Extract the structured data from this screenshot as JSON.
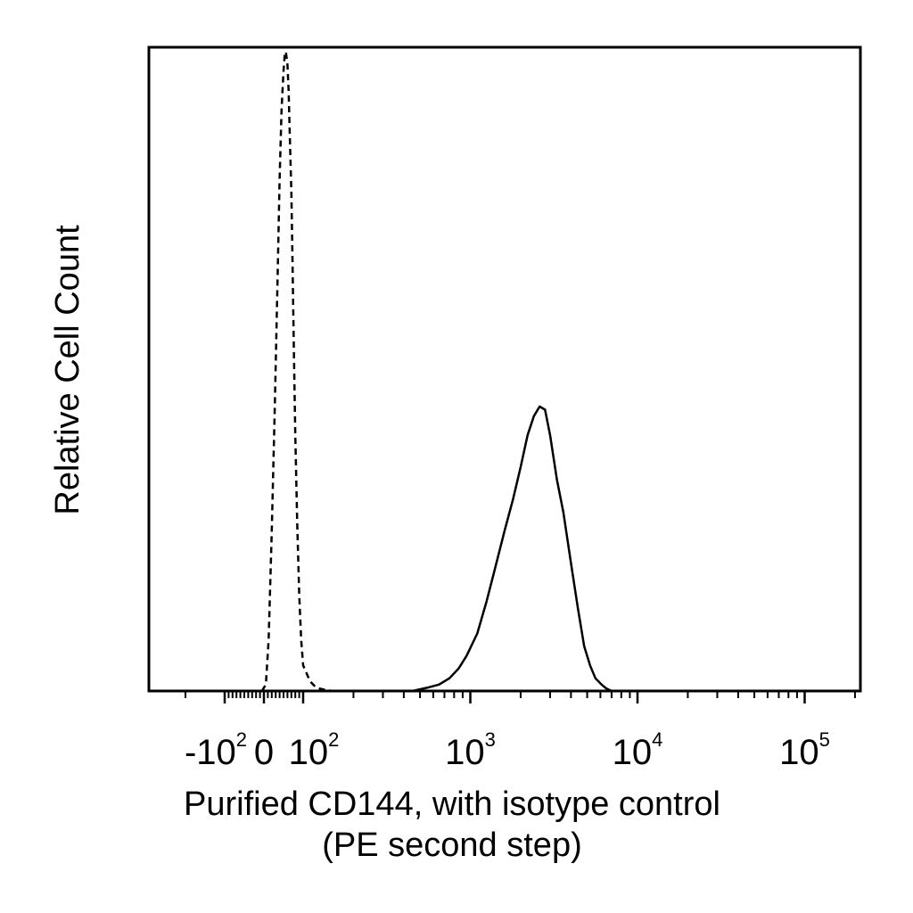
{
  "chart_data": {
    "type": "histogram",
    "title": "",
    "xlabel_line1": "Purified CD144, with isotype control",
    "xlabel_line2": "(PE second step)",
    "ylabel": "Relative Cell Count",
    "x_scale": "biexponential",
    "xlim": [
      -300,
      250000
    ],
    "ylim": [
      0,
      100
    ],
    "grid": false,
    "x_ticks": [
      {
        "base": "-10",
        "exp": "2",
        "value": -100
      },
      {
        "base": "0",
        "exp": "",
        "value": 0
      },
      {
        "base": "10",
        "exp": "2",
        "value": 100
      },
      {
        "base": "10",
        "exp": "3",
        "value": 1000
      },
      {
        "base": "10",
        "exp": "4",
        "value": 10000
      },
      {
        "base": "10",
        "exp": "5",
        "value": 100000
      }
    ],
    "series": [
      {
        "style": "dashed",
        "x": [
          -5,
          5,
          12,
          20,
          28,
          35,
          40,
          45,
          50,
          53,
          56,
          60,
          63,
          66,
          70,
          73,
          76,
          80,
          85,
          90,
          95,
          100,
          110,
          120,
          135,
          150
        ],
        "y": [
          0,
          1,
          8,
          25,
          45,
          65,
          80,
          91,
          97,
          99.5,
          100,
          98,
          94,
          87,
          78,
          67,
          55,
          40,
          26,
          15,
          8,
          4,
          1.5,
          0.5,
          0.2,
          0
        ]
      },
      {
        "style": "solid",
        "x": [
          450,
          550,
          650,
          750,
          850,
          950,
          1100,
          1250,
          1400,
          1600,
          1800,
          2000,
          2200,
          2400,
          2600,
          2800,
          3000,
          3300,
          3600,
          4000,
          4400,
          4800,
          5200,
          5600,
          6100,
          6500,
          7000
        ],
        "y": [
          0,
          0.5,
          1,
          2,
          3.5,
          5.5,
          9,
          14,
          19,
          25,
          30,
          35,
          40,
          43,
          44.5,
          44,
          40,
          33,
          28,
          20,
          13,
          7,
          4,
          2,
          1,
          0.4,
          0
        ]
      }
    ]
  }
}
